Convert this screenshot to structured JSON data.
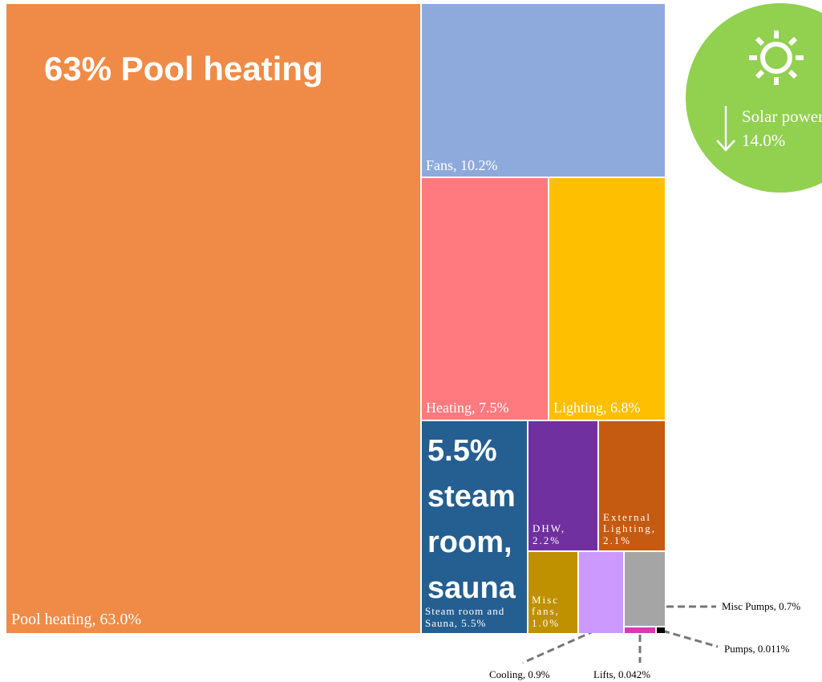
{
  "chart_data": {
    "type": "treemap",
    "categories": [
      "Pool heating",
      "Fans",
      "Heating",
      "Lighting",
      "Steam room and Sauna",
      "DHW",
      "External Lighting",
      "Misc fans",
      "Cooling",
      "Misc Pumps",
      "Lifts",
      "Pumps"
    ],
    "values": [
      63.0,
      10.2,
      7.5,
      6.8,
      5.5,
      2.2,
      2.1,
      1.0,
      0.9,
      0.7,
      0.042,
      0.011
    ],
    "value_labels": [
      "Pool heating, 63.0%",
      "Fans, 10.2%",
      "Heating, 7.5%",
      "Lighting, 6.8%",
      "Steam room and Sauna, 5.5%",
      "DHW, 2.2%",
      "External Lighting, 2.1%",
      "Misc fans, 1.0%",
      "Cooling, 0.9%",
      "Misc Pumps, 0.7%",
      "Lifts, 0.042%",
      "Pumps, 0.011%"
    ],
    "colors": [
      "#ef8b47",
      "#8eaadc",
      "#fe7a7e",
      "#fdbf00",
      "#255e91",
      "#7030a0",
      "#c55a11",
      "#bf9000",
      "#cc99ff",
      "#a5a5a5",
      "#d63ab5",
      "#000000"
    ],
    "annotations": [
      "63% Pool heating",
      "5.5% steam room, sauna"
    ],
    "callout": {
      "text": "Solar power",
      "value": 14.0,
      "value_label": "14.0%"
    }
  }
}
